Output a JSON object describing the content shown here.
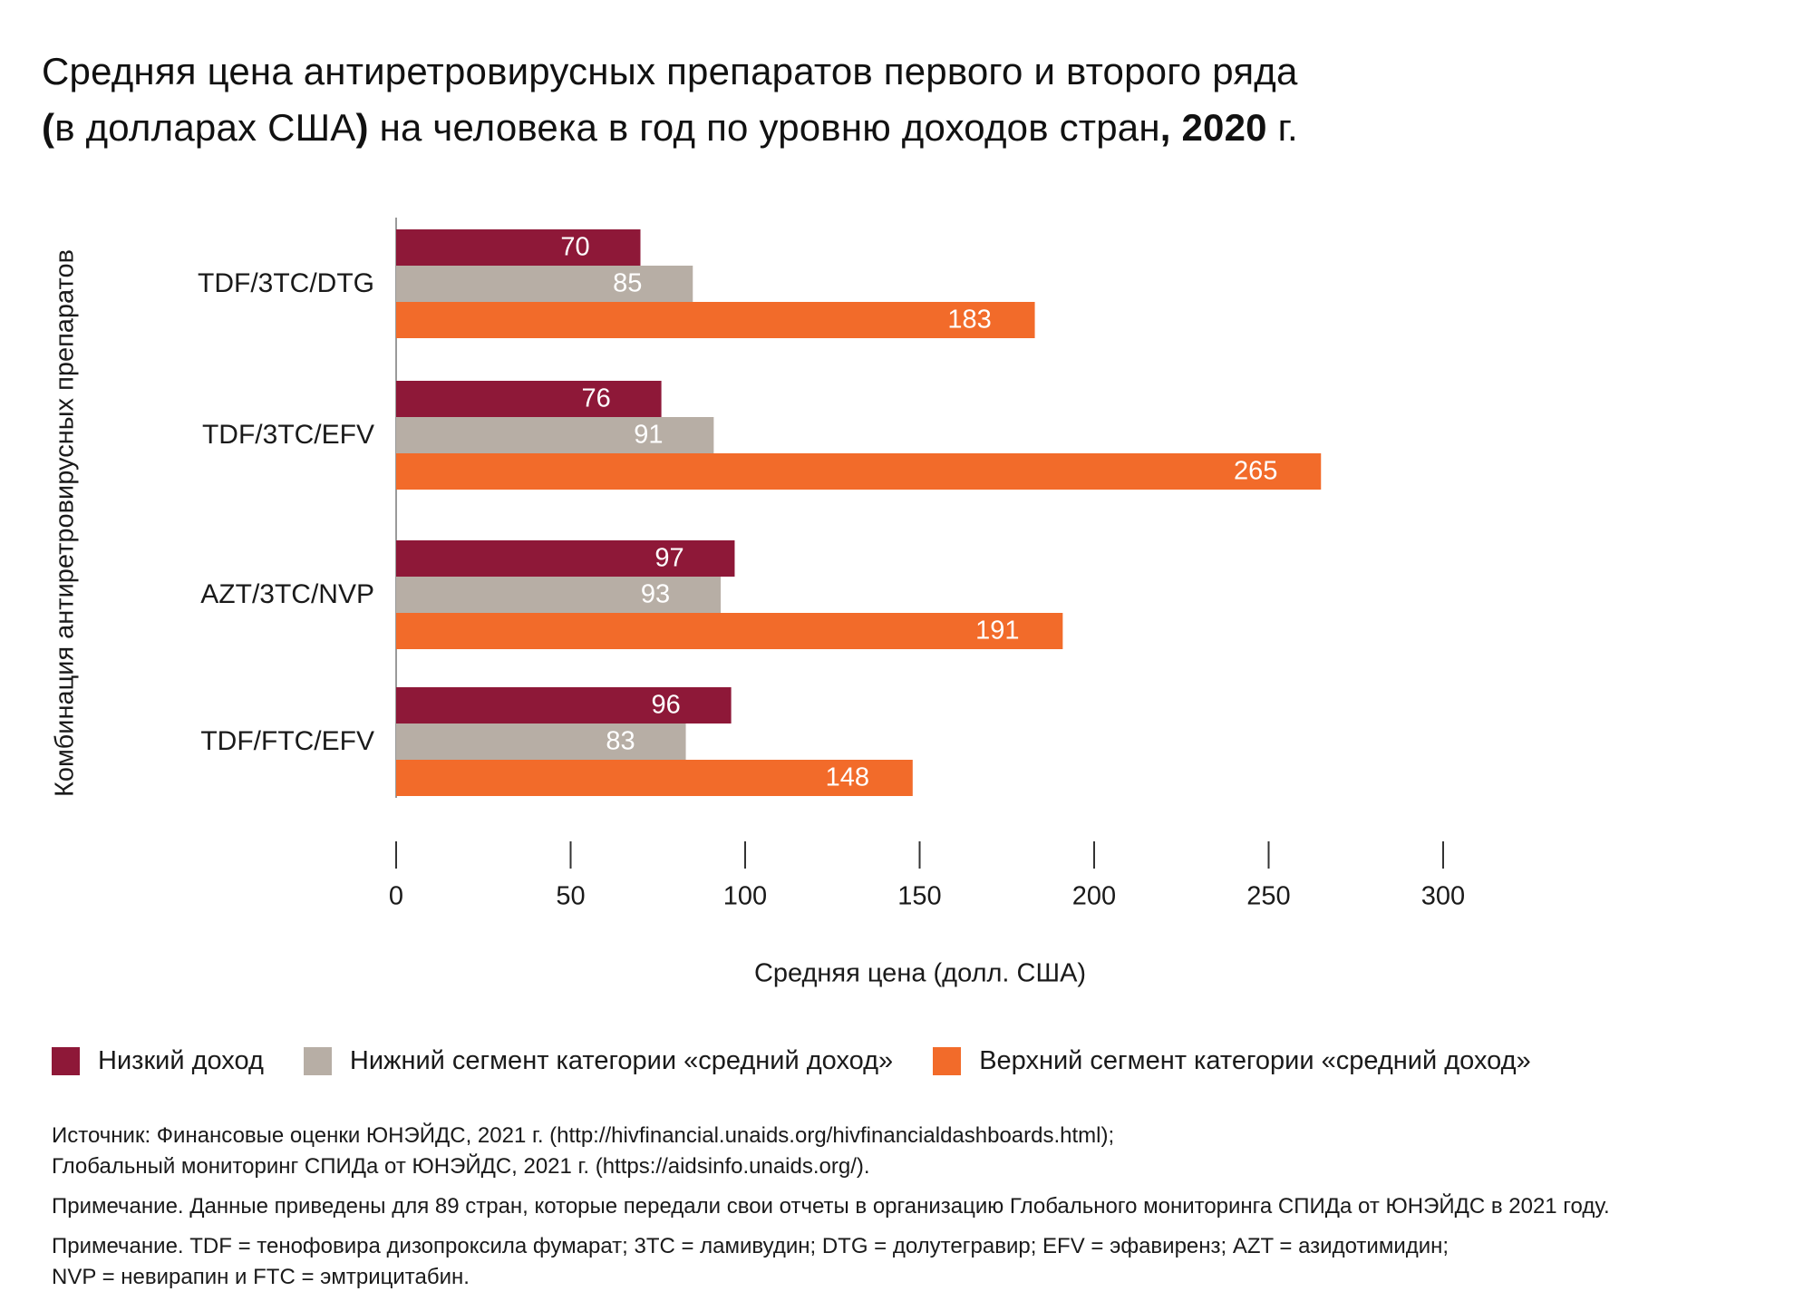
{
  "title": {
    "line1": "Средняя цена антиретровирусных препаратов первого и второго ряда",
    "line2_open_paren": "(",
    "line2_part1": "в долларах США",
    "line2_close_paren": ")",
    "line2_part2": " на человека в год по уровню доходов стран",
    "line2_comma_year": ", 2020",
    "line2_end": " г."
  },
  "chart_data": {
    "type": "bar",
    "orientation": "horizontal",
    "categories": [
      "TDF/3TC/DTG",
      "TDF/3TC/EFV",
      "AZT/3TC/NVP",
      "TDF/FTC/EFV"
    ],
    "series": [
      {
        "name": "Низкий доход",
        "color": "#8e1838",
        "values": [
          70,
          76,
          97,
          96
        ]
      },
      {
        "name": "Нижний сегмент категории «средний доход»",
        "color": "#b7aea5",
        "values": [
          85,
          91,
          93,
          83
        ]
      },
      {
        "name": "Верхний сегмент категории «средний доход»",
        "color": "#f26b2a",
        "values": [
          183,
          265,
          191,
          148
        ]
      }
    ],
    "xlabel": "Средняя цена (долл. США)",
    "ylabel": "Комбинация антиретровирусных препаратов",
    "xlim": [
      0,
      300
    ],
    "xticks": [
      0,
      50,
      100,
      150,
      200,
      250,
      300
    ],
    "grid": false,
    "legend_position": "bottom"
  },
  "notes": {
    "source_line1": "Источник: Финансовые оценки ЮНЭЙДС, 2021 г. (http://hivfinancial.unaids.org/hivfinancialdashboards.html);",
    "source_line2": "Глобальный мониторинг СПИДа от ЮНЭЙДС, 2021 г. (https://aidsinfo.unaids.org/).",
    "note1": "Примечание. Данные приведены для 89 стран, которые передали свои отчеты в организацию Глобального мониторинга СПИДа от ЮНЭЙДС в 2021 году.",
    "note2_line1": "Примечание. TDF = тенофовира дизопроксила фумарат; 3TC = ламивудин; DTG = долутегравир; EFV = эфавиренз; AZT = азидотимидин;",
    "note2_line2": "NVP = невирапин и FTC = эмтрицитабин."
  }
}
